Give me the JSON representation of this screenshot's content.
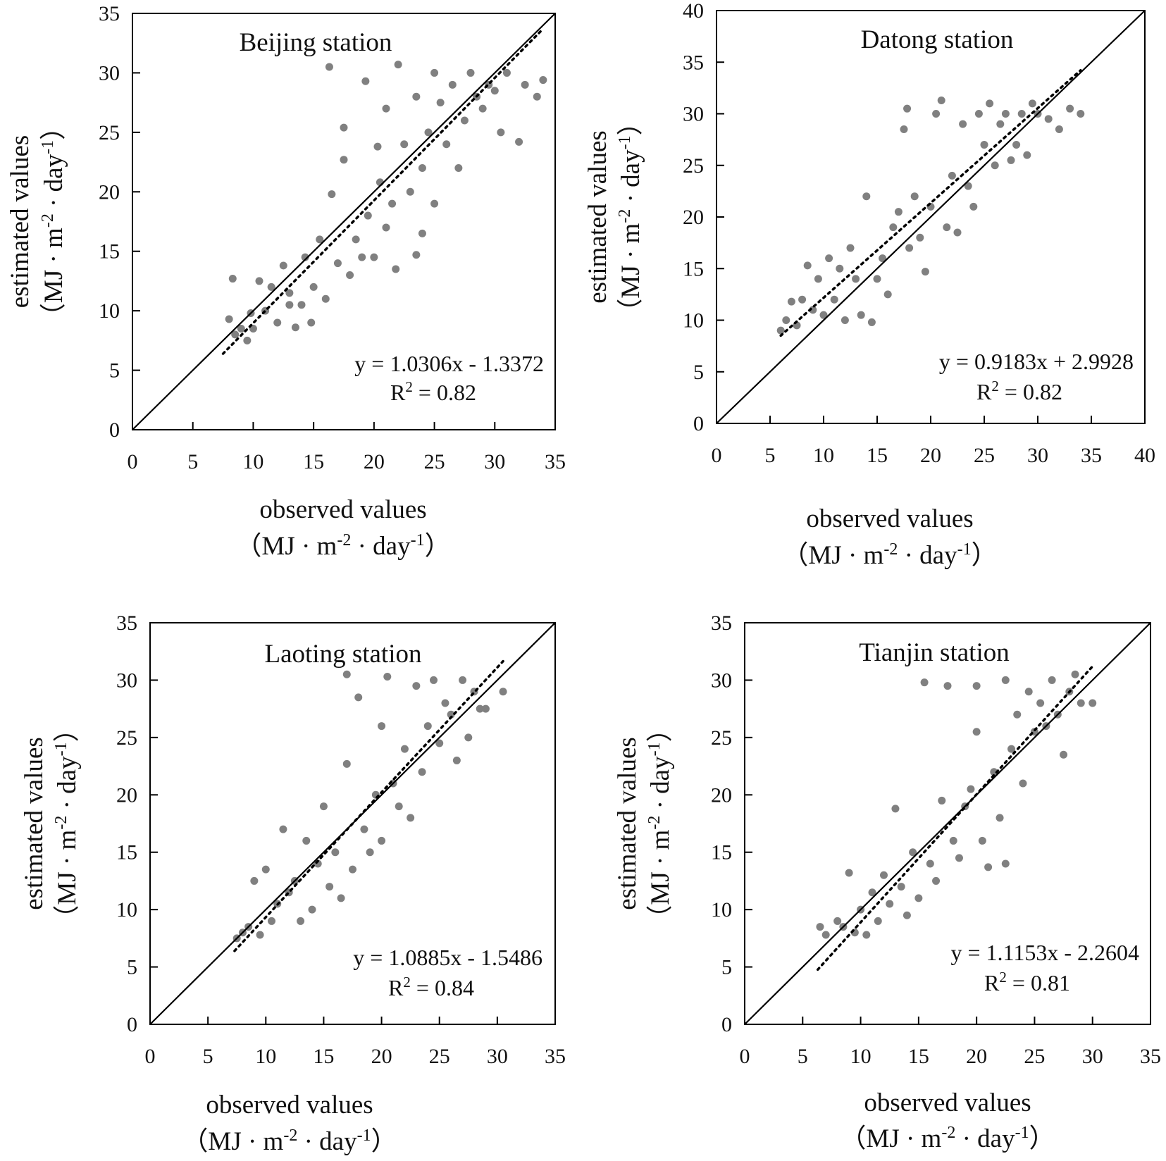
{
  "labels": {
    "x_title": "observed values",
    "y_title": "estimated values",
    "unit": {
      "pre": "（MJ · m",
      "exp1": "-2",
      "mid": " · day",
      "exp2": "-1",
      "post": "）"
    },
    "r2_letter": "R",
    "r2_exp": "2",
    "r2_eq": " = "
  },
  "colors": {
    "points": "#808080",
    "lines": "#000000"
  },
  "chart_data": [
    {
      "type": "scatter",
      "title": "Beijing station",
      "xlim": [
        0,
        35
      ],
      "ylim": [
        0,
        35
      ],
      "xticks": [
        0,
        5,
        10,
        15,
        20,
        25,
        30,
        35
      ],
      "yticks": [
        0,
        5,
        10,
        15,
        20,
        25,
        30,
        35
      ],
      "identity_line": true,
      "fit": {
        "equation": "y = 1.0306x - 1.3372",
        "slope": 1.0306,
        "intercept": -1.3372,
        "r2": "0.82",
        "x_range": [
          7.5,
          34
        ],
        "style": "dotted"
      },
      "points": [
        [
          8,
          9.3
        ],
        [
          8.3,
          12.7
        ],
        [
          8.5,
          8
        ],
        [
          9,
          8.5
        ],
        [
          9.5,
          7.5
        ],
        [
          9.8,
          9.8
        ],
        [
          10,
          8.5
        ],
        [
          10.5,
          12.5
        ],
        [
          11,
          10
        ],
        [
          11.5,
          12
        ],
        [
          12,
          9
        ],
        [
          12.5,
          13.8
        ],
        [
          13,
          11.5
        ],
        [
          13.5,
          8.6
        ],
        [
          14,
          10.5
        ],
        [
          14.3,
          14.5
        ],
        [
          14.8,
          9
        ],
        [
          15,
          12
        ],
        [
          15.5,
          16
        ],
        [
          16,
          11
        ],
        [
          16.5,
          19.8
        ],
        [
          16.3,
          30.5
        ],
        [
          17,
          14
        ],
        [
          17.5,
          25.4
        ],
        [
          17.5,
          22.7
        ],
        [
          18,
          13
        ],
        [
          18.5,
          16
        ],
        [
          19,
          14.5
        ],
        [
          19.3,
          29.3
        ],
        [
          19.5,
          18
        ],
        [
          20,
          14.5
        ],
        [
          20.3,
          23.8
        ],
        [
          20.5,
          20.8
        ],
        [
          21,
          17
        ],
        [
          21.5,
          19
        ],
        [
          21.8,
          13.5
        ],
        [
          22,
          30.7
        ],
        [
          22.5,
          24
        ],
        [
          23,
          20
        ],
        [
          23.5,
          14.7
        ],
        [
          23.5,
          28
        ],
        [
          24,
          22
        ],
        [
          24.5,
          25
        ],
        [
          25,
          19
        ],
        [
          25,
          30
        ],
        [
          25.5,
          27.5
        ],
        [
          26,
          24
        ],
        [
          26.5,
          29
        ],
        [
          27,
          22
        ],
        [
          27.5,
          26
        ],
        [
          28,
          30
        ],
        [
          28.5,
          28
        ],
        [
          29,
          27
        ],
        [
          29.5,
          29
        ],
        [
          30,
          28.5
        ],
        [
          30.5,
          25
        ],
        [
          31,
          30
        ],
        [
          32,
          24.2
        ],
        [
          32.5,
          29
        ],
        [
          33.5,
          28
        ],
        [
          34,
          29.4
        ],
        [
          21,
          27
        ],
        [
          24,
          16.5
        ],
        [
          13,
          10.5
        ]
      ]
    },
    {
      "type": "scatter",
      "title": "Datong station",
      "xlim": [
        0,
        40
      ],
      "ylim": [
        0,
        40
      ],
      "xticks": [
        0,
        5,
        10,
        15,
        20,
        25,
        30,
        35,
        40
      ],
      "yticks": [
        0,
        5,
        10,
        15,
        20,
        25,
        30,
        35,
        40
      ],
      "identity_line": true,
      "fit": {
        "equation": "y = 0.9183x + 2.9928",
        "slope": 0.9183,
        "intercept": 2.9928,
        "r2": "0.82",
        "x_range": [
          6,
          34
        ],
        "style": "dotted"
      },
      "points": [
        [
          6,
          9
        ],
        [
          6.5,
          10
        ],
        [
          7,
          11.8
        ],
        [
          7.5,
          9.5
        ],
        [
          8,
          12
        ],
        [
          8.5,
          15.3
        ],
        [
          9,
          11
        ],
        [
          9.5,
          14
        ],
        [
          10,
          10.5
        ],
        [
          10.5,
          16
        ],
        [
          11,
          12
        ],
        [
          11.5,
          15
        ],
        [
          12,
          10
        ],
        [
          12.5,
          17
        ],
        [
          13,
          14
        ],
        [
          13.5,
          10.5
        ],
        [
          14,
          22
        ],
        [
          14.5,
          9.8
        ],
        [
          15,
          14
        ],
        [
          15.5,
          16
        ],
        [
          16,
          12.5
        ],
        [
          16.5,
          19
        ],
        [
          17,
          20.5
        ],
        [
          17.5,
          28.5
        ],
        [
          17.8,
          30.5
        ],
        [
          18,
          17
        ],
        [
          18.5,
          22
        ],
        [
          19,
          18
        ],
        [
          19.5,
          14.7
        ],
        [
          20,
          21
        ],
        [
          20.5,
          30
        ],
        [
          21,
          31.3
        ],
        [
          21.5,
          19
        ],
        [
          22,
          24
        ],
        [
          22.5,
          18.5
        ],
        [
          23,
          29
        ],
        [
          23.5,
          23
        ],
        [
          24,
          21
        ],
        [
          24.5,
          30
        ],
        [
          25,
          27
        ],
        [
          25.5,
          31
        ],
        [
          26,
          25
        ],
        [
          26.5,
          29
        ],
        [
          27,
          30
        ],
        [
          27.5,
          25.5
        ],
        [
          28,
          27
        ],
        [
          28.5,
          30
        ],
        [
          29,
          26
        ],
        [
          29.5,
          31
        ],
        [
          30,
          30
        ],
        [
          31,
          29.5
        ],
        [
          32,
          28.5
        ],
        [
          33,
          30.5
        ],
        [
          34,
          30
        ]
      ]
    },
    {
      "type": "scatter",
      "title": "Laoting station",
      "xlim": [
        0,
        35
      ],
      "ylim": [
        0,
        35
      ],
      "xticks": [
        0,
        5,
        10,
        15,
        20,
        25,
        30,
        35
      ],
      "yticks": [
        0,
        5,
        10,
        15,
        20,
        25,
        30,
        35
      ],
      "identity_line": true,
      "fit": {
        "equation": "y = 1.0885x - 1.5486",
        "slope": 1.0885,
        "intercept": -1.5486,
        "r2": "0.84",
        "x_range": [
          7.3,
          30.5
        ],
        "style": "dotted"
      },
      "points": [
        [
          7.5,
          7.5
        ],
        [
          8,
          8
        ],
        [
          8.5,
          8.5
        ],
        [
          9,
          12.5
        ],
        [
          9.5,
          7.8
        ],
        [
          10,
          13.5
        ],
        [
          10.5,
          9
        ],
        [
          11,
          10.5
        ],
        [
          11.5,
          17
        ],
        [
          12,
          11.5
        ],
        [
          12.5,
          12.5
        ],
        [
          13,
          9
        ],
        [
          13.5,
          16
        ],
        [
          14,
          10
        ],
        [
          14.5,
          14
        ],
        [
          15,
          19
        ],
        [
          15.5,
          12
        ],
        [
          16,
          15
        ],
        [
          16.5,
          11
        ],
        [
          17,
          22.7
        ],
        [
          17,
          30.5
        ],
        [
          17.5,
          13.5
        ],
        [
          18,
          28.5
        ],
        [
          18.5,
          17
        ],
        [
          19,
          15
        ],
        [
          19.5,
          20
        ],
        [
          20,
          26
        ],
        [
          20,
          16
        ],
        [
          20.5,
          30.3
        ],
        [
          21,
          21
        ],
        [
          21.5,
          19
        ],
        [
          22,
          24
        ],
        [
          22.5,
          18
        ],
        [
          23,
          29.5
        ],
        [
          23.5,
          22
        ],
        [
          24,
          26
        ],
        [
          24.5,
          30
        ],
        [
          25,
          24.5
        ],
        [
          25.5,
          28
        ],
        [
          26,
          27
        ],
        [
          26.5,
          23
        ],
        [
          27,
          30
        ],
        [
          27.5,
          25
        ],
        [
          28,
          29
        ],
        [
          28.5,
          27.5
        ],
        [
          29,
          27.5
        ],
        [
          30.5,
          29
        ]
      ]
    },
    {
      "type": "scatter",
      "title": "Tianjin station",
      "xlim": [
        0,
        35
      ],
      "ylim": [
        0,
        35
      ],
      "xticks": [
        0,
        5,
        10,
        15,
        20,
        25,
        30,
        35
      ],
      "yticks": [
        0,
        5,
        10,
        15,
        20,
        25,
        30,
        35
      ],
      "identity_line": true,
      "fit": {
        "equation": "y = 1.1153x - 2.2604",
        "slope": 1.1153,
        "intercept": -2.2604,
        "r2": "0.81",
        "x_range": [
          6.3,
          30
        ],
        "style": "dotted"
      },
      "points": [
        [
          6.5,
          8.5
        ],
        [
          7,
          7.8
        ],
        [
          8,
          9
        ],
        [
          8.5,
          8.5
        ],
        [
          9,
          13.2
        ],
        [
          9.5,
          8
        ],
        [
          10,
          10
        ],
        [
          10.5,
          7.8
        ],
        [
          11,
          11.5
        ],
        [
          11.5,
          9
        ],
        [
          12,
          13
        ],
        [
          12.5,
          10.5
        ],
        [
          13,
          18.8
        ],
        [
          13.5,
          12
        ],
        [
          14,
          9.5
        ],
        [
          14.5,
          15
        ],
        [
          15,
          11
        ],
        [
          15.5,
          29.8
        ],
        [
          16,
          14
        ],
        [
          16.5,
          12.5
        ],
        [
          17,
          19.5
        ],
        [
          17.5,
          29.5
        ],
        [
          18,
          16
        ],
        [
          18.5,
          14.5
        ],
        [
          19,
          19
        ],
        [
          19.5,
          20.5
        ],
        [
          20,
          29.5
        ],
        [
          20,
          25.5
        ],
        [
          20.5,
          16
        ],
        [
          21,
          13.7
        ],
        [
          21.5,
          22
        ],
        [
          22,
          18
        ],
        [
          22.5,
          14
        ],
        [
          22.5,
          30
        ],
        [
          23,
          24
        ],
        [
          23.5,
          27
        ],
        [
          24,
          21
        ],
        [
          24.5,
          29
        ],
        [
          25,
          25.5
        ],
        [
          25.5,
          28
        ],
        [
          26,
          26
        ],
        [
          26.5,
          30
        ],
        [
          27,
          27
        ],
        [
          27.5,
          23.5
        ],
        [
          28,
          29
        ],
        [
          28.5,
          30.5
        ],
        [
          29,
          28
        ],
        [
          30,
          28
        ]
      ]
    }
  ]
}
